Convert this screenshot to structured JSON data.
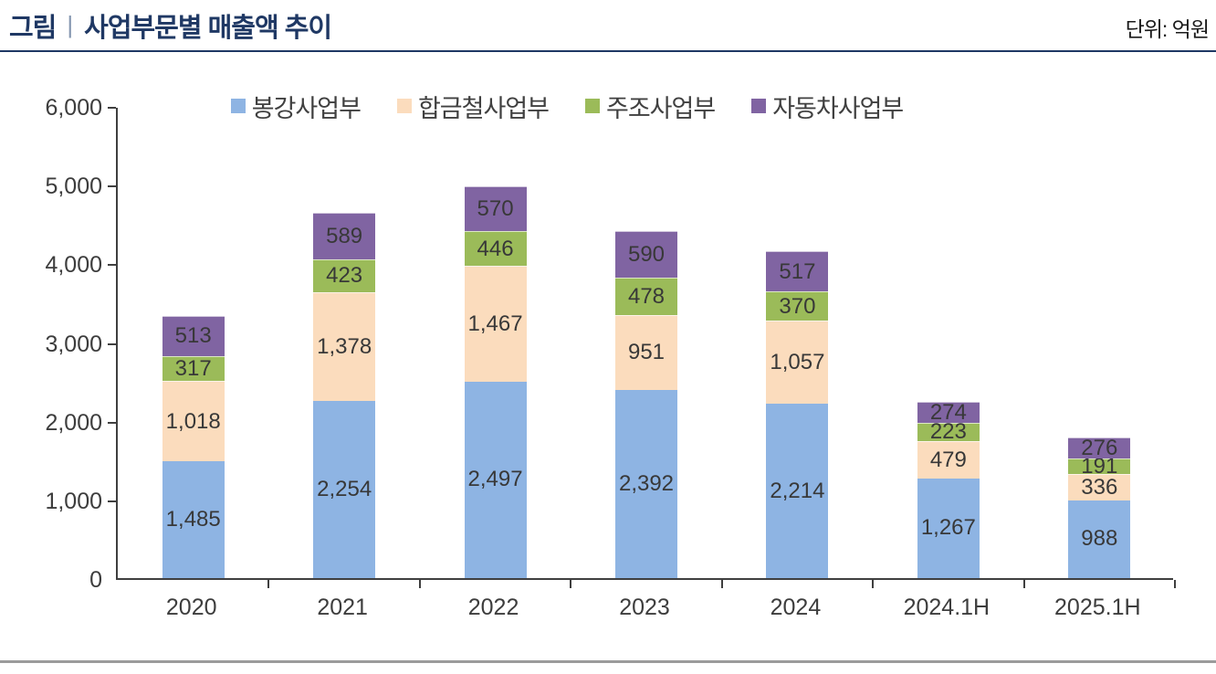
{
  "header": {
    "title_prefix": "그림",
    "title_separator": "|",
    "title": "사업부문별 매출액 추이",
    "unit_label": "단위: 억원"
  },
  "colors": {
    "title_navy": "#1f3864",
    "footer_rule_gray": "#9b9b9b",
    "axis": "#3f3f3f",
    "series_blue": "#8eb4e3",
    "series_peach": "#fbdcbd",
    "series_green": "#9bbb59",
    "series_purple": "#8064a2"
  },
  "chart_data": {
    "type": "bar",
    "stacked": true,
    "title": "사업부문별 매출액 추이",
    "unit": "단위: 억원",
    "legend_position": "top",
    "grid": false,
    "categories": [
      "2020",
      "2021",
      "2022",
      "2023",
      "2024",
      "2024.1H",
      "2025.1H"
    ],
    "series": [
      {
        "name": "봉강사업부",
        "color": "#8eb4e3",
        "values": [
          1485,
          2254,
          2497,
          2392,
          2214,
          1267,
          988
        ]
      },
      {
        "name": "합금철사업부",
        "color": "#fbdcbd",
        "values": [
          1018,
          1378,
          1467,
          951,
          1057,
          479,
          336
        ]
      },
      {
        "name": "주조사업부",
        "color": "#9bbb59",
        "values": [
          317,
          423,
          446,
          478,
          370,
          223,
          191
        ]
      },
      {
        "name": "자동차사업부",
        "color": "#8064a2",
        "values": [
          513,
          589,
          570,
          590,
          517,
          274,
          276
        ]
      }
    ],
    "totals": [
      3333,
      4644,
      4980,
      4411,
      4158,
      2243,
      1791
    ],
    "ylim": [
      0,
      6000
    ],
    "ytick_step": 1000,
    "ytick_labels": [
      "0",
      "1,000",
      "2,000",
      "3,000",
      "4,000",
      "5,000",
      "6,000"
    ]
  }
}
